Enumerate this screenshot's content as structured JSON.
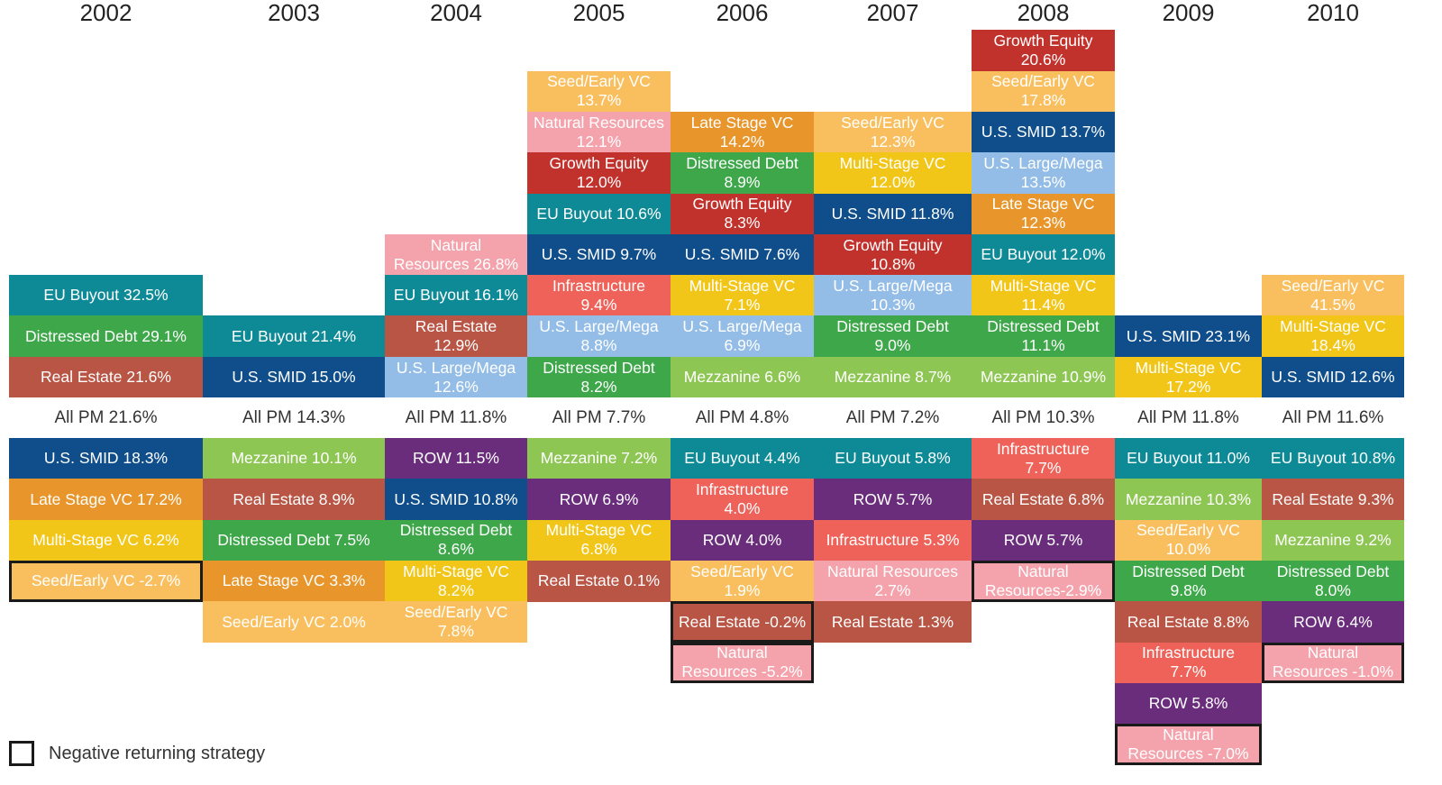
{
  "chart_data": {
    "type": "table",
    "legend": {
      "label": "Negative returning strategy"
    },
    "colors": {
      "EU Buyout": "#0e8a97",
      "Distressed Debt": "#3da74a",
      "Real Estate": "#b85545",
      "U.S. SMID": "#0f4e8a",
      "Late Stage VC": "#e8962b",
      "Multi-Stage VC": "#f2c619",
      "Seed/Early VC": "#f9bf5e",
      "Mezzanine": "#8ec654",
      "Natural Resources": "#f4a3ac",
      "U.S. Large/Mega": "#93bde6",
      "ROW": "#6a2d7c",
      "Infrastructure": "#ee6259",
      "Growth Equity": "#c2322d"
    },
    "years": [
      {
        "year": "2002",
        "all_pm": "All PM 21.6%",
        "above": [
          {
            "strategy": "EU Buyout",
            "label": "EU Buyout 32.5%",
            "value": 32.5
          },
          {
            "strategy": "Distressed Debt",
            "label": "Distressed Debt 29.1%",
            "value": 29.1
          },
          {
            "strategy": "Real Estate",
            "label": "Real Estate 21.6%",
            "value": 21.6
          }
        ],
        "below": [
          {
            "strategy": "U.S. SMID",
            "label": "U.S. SMID 18.3%",
            "value": 18.3
          },
          {
            "strategy": "Late Stage VC",
            "label": "Late Stage VC 17.2%",
            "value": 17.2
          },
          {
            "strategy": "Multi-Stage VC",
            "label": "Multi-Stage VC 6.2%",
            "value": 6.2
          },
          {
            "strategy": "Seed/Early VC",
            "label": "Seed/Early VC  -2.7%",
            "value": -2.7
          }
        ]
      },
      {
        "year": "2003",
        "all_pm": "All PM 14.3%",
        "above": [
          {
            "strategy": "EU Buyout",
            "label": "EU Buyout 21.4%",
            "value": 21.4
          },
          {
            "strategy": "U.S. SMID",
            "label": "U.S. SMID 15.0%",
            "value": 15.0
          }
        ],
        "below": [
          {
            "strategy": "Mezzanine",
            "label": "Mezzanine 10.1%",
            "value": 10.1
          },
          {
            "strategy": "Real Estate",
            "label": "Real Estate 8.9%",
            "value": 8.9
          },
          {
            "strategy": "Distressed Debt",
            "label": "Distressed Debt 7.5%",
            "value": 7.5
          },
          {
            "strategy": "Late Stage VC",
            "label": "Late Stage VC 3.3%",
            "value": 3.3
          },
          {
            "strategy": "Seed/Early VC",
            "label": "Seed/Early VC 2.0%",
            "value": 2.0
          }
        ]
      },
      {
        "year": "2004",
        "all_pm": "All PM 11.8%",
        "above": [
          {
            "strategy": "Natural Resources",
            "label": "Natural\nResources 26.8%",
            "value": 26.8
          },
          {
            "strategy": "EU Buyout",
            "label": "EU Buyout 16.1%",
            "value": 16.1
          },
          {
            "strategy": "Real Estate",
            "label": "Real Estate\n12.9%",
            "value": 12.9
          },
          {
            "strategy": "U.S. Large/Mega",
            "label": "U.S. Large/Mega\n12.6%",
            "value": 12.6
          }
        ],
        "below": [
          {
            "strategy": "ROW",
            "label": "ROW 11.5%",
            "value": 11.5
          },
          {
            "strategy": "U.S. SMID",
            "label": "U.S. SMID 10.8%",
            "value": 10.8
          },
          {
            "strategy": "Distressed Debt",
            "label": "Distressed Debt\n8.6%",
            "value": 8.6
          },
          {
            "strategy": "Multi-Stage VC",
            "label": "Multi-Stage VC\n8.2%",
            "value": 8.2
          },
          {
            "strategy": "Seed/Early VC",
            "label": "Seed/Early VC\n7.8%",
            "value": 7.8
          }
        ]
      },
      {
        "year": "2005",
        "all_pm": "All PM 7.7%",
        "above": [
          {
            "strategy": "Seed/Early VC",
            "label": "Seed/Early VC\n13.7%",
            "value": 13.7
          },
          {
            "strategy": "Natural Resources",
            "label": "Natural Resources\n12.1%",
            "value": 12.1
          },
          {
            "strategy": "Growth Equity",
            "label": "Growth Equity\n12.0%",
            "value": 12.0
          },
          {
            "strategy": "EU Buyout",
            "label": "EU Buyout 10.6%",
            "value": 10.6
          },
          {
            "strategy": "U.S. SMID",
            "label": "U.S. SMID 9.7%",
            "value": 9.7
          },
          {
            "strategy": "Infrastructure",
            "label": "Infrastructure\n9.4%",
            "value": 9.4
          },
          {
            "strategy": "U.S. Large/Mega",
            "label": "U.S. Large/Mega\n8.8%",
            "value": 8.8
          },
          {
            "strategy": "Distressed Debt",
            "label": "Distressed Debt\n8.2%",
            "value": 8.2
          }
        ],
        "below": [
          {
            "strategy": "Mezzanine",
            "label": "Mezzanine 7.2%",
            "value": 7.2
          },
          {
            "strategy": "ROW",
            "label": "ROW 6.9%",
            "value": 6.9
          },
          {
            "strategy": "Multi-Stage VC",
            "label": "Multi-Stage VC\n6.8%",
            "value": 6.8
          },
          {
            "strategy": "Real Estate",
            "label": "Real Estate 0.1%",
            "value": 0.1
          }
        ]
      },
      {
        "year": "2006",
        "all_pm": "All PM 4.8%",
        "above": [
          {
            "strategy": "Late Stage VC",
            "label": "Late Stage VC\n14.2%",
            "value": 14.2
          },
          {
            "strategy": "Distressed Debt",
            "label": "Distressed Debt\n8.9%",
            "value": 8.9
          },
          {
            "strategy": "Growth Equity",
            "label": "Growth Equity\n8.3%",
            "value": 8.3
          },
          {
            "strategy": "U.S. SMID",
            "label": "U.S. SMID 7.6%",
            "value": 7.6
          },
          {
            "strategy": "Multi-Stage VC",
            "label": "Multi-Stage VC\n7.1%",
            "value": 7.1
          },
          {
            "strategy": "U.S. Large/Mega",
            "label": "U.S. Large/Mega\n6.9%",
            "value": 6.9
          },
          {
            "strategy": "Mezzanine",
            "label": "Mezzanine 6.6%",
            "value": 6.6
          }
        ],
        "below": [
          {
            "strategy": "EU Buyout",
            "label": "EU Buyout 4.4%",
            "value": 4.4
          },
          {
            "strategy": "Infrastructure",
            "label": "Infrastructure\n4.0%",
            "value": 4.0
          },
          {
            "strategy": "ROW",
            "label": "ROW 4.0%",
            "value": 4.0
          },
          {
            "strategy": "Seed/Early VC",
            "label": "Seed/Early VC\n1.9%",
            "value": 1.9
          },
          {
            "strategy": "Real Estate",
            "label": "Real Estate -0.2%",
            "value": -0.2
          },
          {
            "strategy": "Natural Resources",
            "label": "Natural\nResources -5.2%",
            "value": -5.2
          }
        ]
      },
      {
        "year": "2007",
        "all_pm": "All PM 7.2%",
        "above": [
          {
            "strategy": "Seed/Early VC",
            "label": "Seed/Early VC\n12.3%",
            "value": 12.3
          },
          {
            "strategy": "Multi-Stage VC",
            "label": "Multi-Stage VC\n12.0%",
            "value": 12.0
          },
          {
            "strategy": "U.S. SMID",
            "label": "U.S. SMID 11.8%",
            "value": 11.8
          },
          {
            "strategy": "Growth Equity",
            "label": "Growth Equity\n10.8%",
            "value": 10.8
          },
          {
            "strategy": "U.S. Large/Mega",
            "label": "U.S. Large/Mega\n10.3%",
            "value": 10.3
          },
          {
            "strategy": "Distressed Debt",
            "label": "Distressed Debt\n9.0%",
            "value": 9.0
          },
          {
            "strategy": "Mezzanine",
            "label": "Mezzanine 8.7%",
            "value": 8.7
          }
        ],
        "below": [
          {
            "strategy": "EU Buyout",
            "label": "EU Buyout 5.8%",
            "value": 5.8
          },
          {
            "strategy": "ROW",
            "label": "ROW 5.7%",
            "value": 5.7
          },
          {
            "strategy": "Infrastructure",
            "label": "Infrastructure 5.3%",
            "value": 5.3
          },
          {
            "strategy": "Natural Resources",
            "label": "Natural Resources\n2.7%",
            "value": 2.7
          },
          {
            "strategy": "Real Estate",
            "label": "Real Estate 1.3%",
            "value": 1.3
          }
        ]
      },
      {
        "year": "2008",
        "all_pm": "All PM 10.3%",
        "above": [
          {
            "strategy": "Growth Equity",
            "label": "Growth Equity\n20.6%",
            "value": 20.6
          },
          {
            "strategy": "Seed/Early VC",
            "label": "Seed/Early VC\n17.8%",
            "value": 17.8
          },
          {
            "strategy": "U.S. SMID",
            "label": "U.S. SMID 13.7%",
            "value": 13.7
          },
          {
            "strategy": "U.S. Large/Mega",
            "label": "U.S. Large/Mega\n13.5%",
            "value": 13.5
          },
          {
            "strategy": "Late Stage VC",
            "label": "Late Stage VC\n12.3%",
            "value": 12.3
          },
          {
            "strategy": "EU Buyout",
            "label": "EU Buyout 12.0%",
            "value": 12.0
          },
          {
            "strategy": "Multi-Stage VC",
            "label": "Multi-Stage VC\n11.4%",
            "value": 11.4
          },
          {
            "strategy": "Distressed Debt",
            "label": "Distressed Debt\n11.1%",
            "value": 11.1
          },
          {
            "strategy": "Mezzanine",
            "label": "Mezzanine 10.9%",
            "value": 10.9
          }
        ],
        "below": [
          {
            "strategy": "Infrastructure",
            "label": "Infrastructure\n7.7%",
            "value": 7.7
          },
          {
            "strategy": "Real Estate",
            "label": "Real Estate 6.8%",
            "value": 6.8
          },
          {
            "strategy": "ROW",
            "label": "ROW 5.7%",
            "value": 5.7
          },
          {
            "strategy": "Natural Resources",
            "label": "Natural\nResources-2.9%",
            "value": -2.9
          }
        ]
      },
      {
        "year": "2009",
        "all_pm": "All PM 11.8%",
        "above": [
          {
            "strategy": "U.S. SMID",
            "label": "U.S. SMID 23.1%",
            "value": 23.1
          },
          {
            "strategy": "Multi-Stage VC",
            "label": "Multi-Stage VC\n17.2%",
            "value": 17.2
          }
        ],
        "below": [
          {
            "strategy": "EU Buyout",
            "label": "EU Buyout 11.0%",
            "value": 11.0
          },
          {
            "strategy": "Mezzanine",
            "label": "Mezzanine 10.3%",
            "value": 10.3
          },
          {
            "strategy": "Seed/Early VC",
            "label": "Seed/Early VC\n10.0%",
            "value": 10.0
          },
          {
            "strategy": "Distressed Debt",
            "label": "Distressed Debt\n9.8%",
            "value": 9.8
          },
          {
            "strategy": "Real Estate",
            "label": "Real Estate 8.8%",
            "value": 8.8
          },
          {
            "strategy": "Infrastructure",
            "label": "Infrastructure\n7.7%",
            "value": 7.7
          },
          {
            "strategy": "ROW",
            "label": "ROW 5.8%",
            "value": 5.8
          },
          {
            "strategy": "Natural Resources",
            "label": "Natural\nResources  -7.0%",
            "value": -7.0
          }
        ]
      },
      {
        "year": "2010",
        "all_pm": "All PM 11.6%",
        "above": [
          {
            "strategy": "Seed/Early VC",
            "label": "Seed/Early VC\n41.5%",
            "value": 41.5
          },
          {
            "strategy": "Multi-Stage VC",
            "label": "Multi-Stage VC\n18.4%",
            "value": 18.4
          },
          {
            "strategy": "U.S. SMID",
            "label": "U.S. SMID 12.6%",
            "value": 12.6
          }
        ],
        "below": [
          {
            "strategy": "EU Buyout",
            "label": "EU Buyout 10.8%",
            "value": 10.8
          },
          {
            "strategy": "Real Estate",
            "label": "Real Estate 9.3%",
            "value": 9.3
          },
          {
            "strategy": "Mezzanine",
            "label": "Mezzanine 9.2%",
            "value": 9.2
          },
          {
            "strategy": "Distressed Debt",
            "label": "Distressed Debt\n8.0%",
            "value": 8.0
          },
          {
            "strategy": "ROW",
            "label": "ROW 6.4%",
            "value": 6.4
          },
          {
            "strategy": "Natural Resources",
            "label": "Natural\nResources  -1.0%",
            "value": -1.0
          }
        ]
      }
    ]
  }
}
